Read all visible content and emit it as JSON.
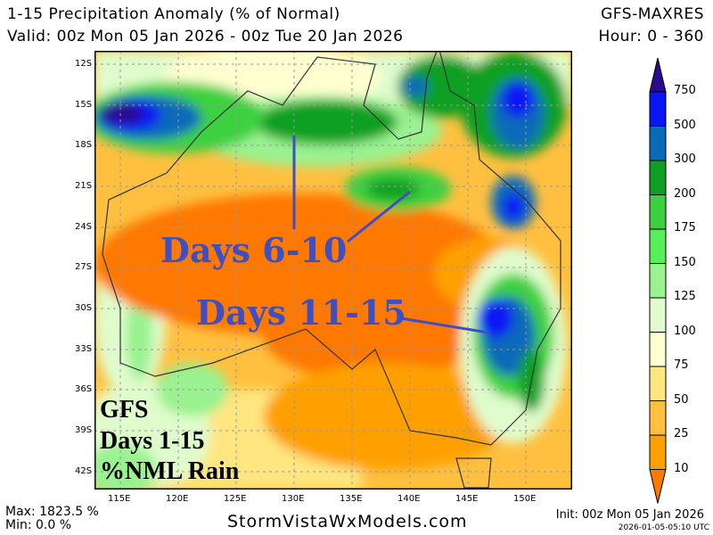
{
  "header": {
    "title": "1-15 Precipitation Anomaly (% of Normal)",
    "model": "GFS-MAXRES",
    "valid": "Valid: 00z Mon 05 Jan 2026 - 00z Tue 20 Jan 2026",
    "hours": "Hour: 0 - 360"
  },
  "map": {
    "lat_ticks": [
      "12S",
      "15S",
      "18S",
      "21S",
      "24S",
      "27S",
      "30S",
      "33S",
      "36S",
      "39S",
      "42S"
    ],
    "lon_ticks": [
      "115E",
      "120E",
      "125E",
      "130E",
      "135E",
      "140E",
      "145E",
      "150E"
    ],
    "annotations": {
      "days_6_10": "Days 6-10",
      "days_11_15": "Days 11-15",
      "annotation_color": "#3e4fc4"
    },
    "overlay": {
      "line1": "GFS",
      "line2": "Days 1-15",
      "line3": "%NML Rain"
    }
  },
  "colorbar": {
    "labels": [
      "750",
      "500",
      "300",
      "200",
      "175",
      "150",
      "125",
      "100",
      "75",
      "50",
      "25",
      "10"
    ],
    "colors": [
      "#2a0a8c",
      "#0a14f5",
      "#0a6ab8",
      "#0ea020",
      "#3cd040",
      "#55f055",
      "#9af290",
      "#e0fccc",
      "#ffffd0",
      "#ffe680",
      "#ffc040",
      "#ffa000",
      "#ff7800"
    ]
  },
  "footer": {
    "max": "Max: 1823.5 %",
    "min": "Min: 0.0 %",
    "site": "StormVistaWxModels.com",
    "init": "Init: 00z Mon 05 Jan 2026",
    "timestamp": "2026-01-05-05:10 UTC"
  }
}
